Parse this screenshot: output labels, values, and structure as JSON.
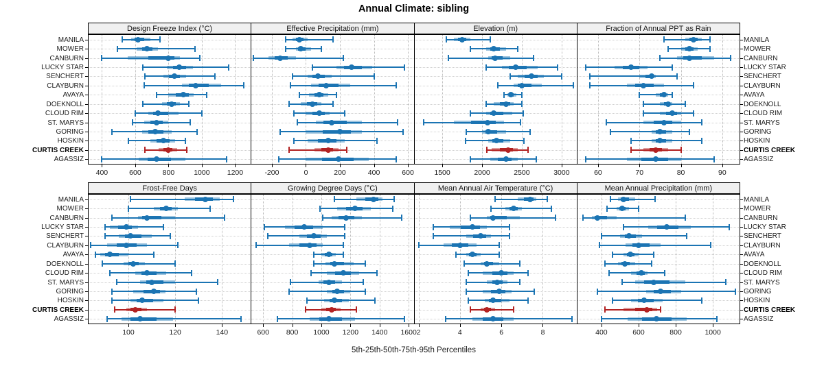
{
  "title": "Annual Climate: sibling",
  "footer": "5th-25th-50th-75th-95th Percentiles",
  "sites": [
    "MANILA",
    "MOWER",
    "CANBURN",
    "LUCKY STAR",
    "SENCHERT",
    "CLAYBURN",
    "AVAYA",
    "DOEKNOLL",
    "CLOUD RIM",
    "ST. MARYS",
    "GORING",
    "HOSKIN",
    "CURTIS CREEK",
    "AGASSIZ"
  ],
  "highlight_site": "CURTIS CREEK",
  "colors": {
    "series": "#1b74b3",
    "series_band": "rgba(27,116,179,0.42)",
    "highlight": "#b22222",
    "highlight_band": "rgba(178,34,34,0.45)",
    "grid": "#b8b8b8",
    "header_bg": "#f0f0f0",
    "border": "#000000"
  },
  "chart_data": {
    "type": "dotplot",
    "subtype": "percentile-intervals",
    "percentiles": [
      "5th",
      "25th",
      "50th",
      "75th",
      "95th"
    ],
    "legend_position": "none",
    "grid": "dotted",
    "layout": {
      "rows": 2,
      "cols": 4
    },
    "panels": [
      {
        "title": "Design Freeze Index (°C)",
        "row": 0,
        "col": 0,
        "xlim": [
          320,
          1290
        ],
        "ticks": [
          400,
          600,
          800,
          1000,
          1200
        ],
        "values": [
          [
            520,
            575,
            615,
            690,
            750
          ],
          [
            495,
            610,
            670,
            735,
            960
          ],
          [
            400,
            555,
            800,
            870,
            990
          ],
          [
            645,
            790,
            865,
            945,
            1160
          ],
          [
            660,
            770,
            835,
            905,
            1080
          ],
          [
            655,
            880,
            965,
            1115,
            1250
          ],
          [
            730,
            800,
            890,
            950,
            1030
          ],
          [
            645,
            760,
            820,
            870,
            920
          ],
          [
            600,
            680,
            735,
            860,
            1000
          ],
          [
            585,
            655,
            730,
            800,
            930
          ],
          [
            460,
            640,
            720,
            820,
            970
          ],
          [
            560,
            690,
            770,
            840,
            900
          ],
          [
            660,
            740,
            800,
            850,
            910
          ],
          [
            400,
            620,
            730,
            900,
            1150
          ]
        ]
      },
      {
        "title": "Effective Precipitation (mm)",
        "row": 0,
        "col": 1,
        "xlim": [
          -320,
          630
        ],
        "ticks": [
          -200,
          0,
          200,
          400,
          600
        ],
        "values": [
          [
            -120,
            -80,
            -40,
            10,
            160
          ],
          [
            -120,
            -60,
            -30,
            30,
            90
          ],
          [
            -310,
            -220,
            -150,
            -60,
            220
          ],
          [
            40,
            180,
            270,
            390,
            580
          ],
          [
            -80,
            10,
            70,
            150,
            400
          ],
          [
            -90,
            30,
            120,
            260,
            530
          ],
          [
            -40,
            20,
            80,
            130,
            180
          ],
          [
            -100,
            -30,
            40,
            90,
            160
          ],
          [
            -70,
            0,
            80,
            140,
            230
          ],
          [
            -50,
            60,
            150,
            330,
            540
          ],
          [
            -150,
            0,
            200,
            330,
            570
          ],
          [
            -70,
            10,
            130,
            230,
            420
          ],
          [
            -100,
            50,
            130,
            190,
            240
          ],
          [
            -160,
            0,
            190,
            370,
            530
          ]
        ]
      },
      {
        "title": "Elevation (m)",
        "row": 0,
        "col": 2,
        "xlim": [
          1150,
          3180
        ],
        "ticks": [
          1500,
          2000,
          2500,
          3000
        ],
        "values": [
          [
            1550,
            1650,
            1750,
            1850,
            2100
          ],
          [
            1850,
            2050,
            2150,
            2300,
            2450
          ],
          [
            1580,
            2080,
            2160,
            2350,
            2650
          ],
          [
            2050,
            2250,
            2420,
            2700,
            2950
          ],
          [
            2350,
            2450,
            2620,
            2780,
            3000
          ],
          [
            2200,
            2400,
            2500,
            2750,
            3150
          ],
          [
            2280,
            2320,
            2360,
            2430,
            2500
          ],
          [
            2050,
            2150,
            2300,
            2400,
            2500
          ],
          [
            1850,
            2050,
            2150,
            2380,
            2520
          ],
          [
            1270,
            1650,
            2070,
            2280,
            2480
          ],
          [
            1800,
            2000,
            2080,
            2300,
            2600
          ],
          [
            1790,
            2080,
            2180,
            2350,
            2530
          ],
          [
            2060,
            2120,
            2330,
            2450,
            2580
          ],
          [
            1850,
            2100,
            2300,
            2450,
            2680
          ]
        ]
      },
      {
        "title": "Fraction of Annual PPT as Rain",
        "row": 0,
        "col": 3,
        "xlim": [
          55,
          94
        ],
        "ticks": [
          60,
          70,
          80,
          90
        ],
        "values": [
          [
            76,
            81,
            83,
            85,
            87
          ],
          [
            77,
            80,
            82,
            84,
            87
          ],
          [
            75,
            79,
            82,
            88,
            92
          ],
          [
            57,
            64,
            68,
            72,
            78
          ],
          [
            58,
            70,
            73,
            74,
            79
          ],
          [
            58,
            67,
            71,
            76,
            83
          ],
          [
            70,
            74,
            76,
            77,
            78
          ],
          [
            71,
            75,
            77,
            78,
            81
          ],
          [
            71,
            75,
            78,
            80,
            83
          ],
          [
            62,
            71,
            76,
            80,
            85
          ],
          [
            63,
            73,
            75,
            78,
            82
          ],
          [
            68,
            73,
            75,
            78,
            85
          ],
          [
            68,
            71,
            74,
            77,
            80
          ],
          [
            57,
            67,
            74,
            80,
            88
          ]
        ]
      },
      {
        "title": "Frost-Free Days",
        "row": 1,
        "col": 0,
        "xlim": [
          83,
          152
        ],
        "ticks": [
          100,
          120,
          140
        ],
        "values": [
          [
            101,
            124,
            133,
            139,
            145
          ],
          [
            100,
            111,
            116,
            121,
            135
          ],
          [
            93,
            104,
            108,
            120,
            141
          ],
          [
            90,
            92,
            99,
            104,
            115
          ],
          [
            90,
            96,
            101,
            110,
            118
          ],
          [
            84,
            91,
            99,
            108,
            121
          ],
          [
            86,
            88,
            92,
            100,
            111
          ],
          [
            89,
            98,
            102,
            107,
            120
          ],
          [
            92,
            103,
            108,
            116,
            127
          ],
          [
            95,
            105,
            110,
            120,
            138
          ],
          [
            93,
            102,
            111,
            116,
            129
          ],
          [
            93,
            101,
            106,
            115,
            130
          ],
          [
            94,
            99,
            103,
            108,
            120
          ],
          [
            91,
            97,
            105,
            119,
            148
          ]
        ]
      },
      {
        "title": "Growing Degree Days (°C)",
        "row": 1,
        "col": 1,
        "xlim": [
          520,
          1630
        ],
        "ticks": [
          600,
          800,
          1000,
          1200,
          1400,
          1600
        ],
        "values": [
          [
            1090,
            1240,
            1360,
            1420,
            1500
          ],
          [
            990,
            1110,
            1230,
            1340,
            1490
          ],
          [
            1010,
            1070,
            1170,
            1280,
            1550
          ],
          [
            610,
            750,
            880,
            1010,
            1160
          ],
          [
            630,
            850,
            950,
            1040,
            1160
          ],
          [
            550,
            780,
            920,
            1010,
            1150
          ],
          [
            950,
            1000,
            1050,
            1100,
            1150
          ],
          [
            950,
            1030,
            1090,
            1220,
            1300
          ],
          [
            930,
            1040,
            1150,
            1260,
            1380
          ],
          [
            790,
            980,
            1050,
            1140,
            1290
          ],
          [
            780,
            1040,
            1110,
            1200,
            1300
          ],
          [
            900,
            1020,
            1090,
            1190,
            1370
          ],
          [
            890,
            1000,
            1070,
            1130,
            1240
          ],
          [
            700,
            920,
            1050,
            1230,
            1570
          ]
        ]
      },
      {
        "title": "Mean Annual Air Temperature (°C)",
        "row": 1,
        "col": 2,
        "xlim": [
          1.8,
          9.6
        ],
        "ticks": [
          2,
          4,
          6,
          8
        ],
        "values": [
          [
            5.7,
            6.8,
            7.4,
            7.7,
            8.2
          ],
          [
            5.5,
            6.2,
            6.6,
            7.0,
            8.4
          ],
          [
            4.5,
            5.3,
            5.6,
            6.9,
            8.6
          ],
          [
            2.7,
            3.5,
            4.6,
            5.3,
            6.4
          ],
          [
            2.7,
            4.3,
            5.0,
            5.5,
            6.4
          ],
          [
            2.0,
            3.2,
            4.0,
            4.8,
            5.9
          ],
          [
            3.8,
            4.3,
            4.6,
            5.0,
            5.9
          ],
          [
            4.2,
            5.0,
            5.3,
            5.9,
            6.9
          ],
          [
            4.4,
            5.1,
            6.0,
            6.6,
            7.3
          ],
          [
            4.3,
            5.3,
            5.8,
            6.3,
            6.9
          ],
          [
            4.3,
            5.1,
            5.9,
            6.5,
            7.6
          ],
          [
            4.4,
            5.2,
            5.6,
            6.4,
            7.3
          ],
          [
            4.5,
            5.0,
            5.3,
            5.7,
            6.6
          ],
          [
            3.3,
            4.6,
            5.6,
            6.6,
            9.4
          ]
        ]
      },
      {
        "title": "Mean Annual Precipitation (mm)",
        "row": 1,
        "col": 3,
        "xlim": [
          270,
          1140
        ],
        "ticks": [
          400,
          600,
          800,
          1000
        ],
        "values": [
          [
            450,
            490,
            520,
            580,
            690
          ],
          [
            430,
            480,
            510,
            550,
            600
          ],
          [
            300,
            350,
            380,
            480,
            850
          ],
          [
            520,
            650,
            750,
            880,
            1090
          ],
          [
            400,
            500,
            550,
            620,
            860
          ],
          [
            390,
            530,
            600,
            720,
            990
          ],
          [
            460,
            520,
            555,
            600,
            680
          ],
          [
            420,
            490,
            525,
            580,
            670
          ],
          [
            440,
            560,
            615,
            650,
            740
          ],
          [
            510,
            580,
            680,
            850,
            1070
          ],
          [
            380,
            640,
            720,
            830,
            1120
          ],
          [
            460,
            560,
            630,
            730,
            940
          ],
          [
            420,
            520,
            645,
            700,
            720
          ],
          [
            400,
            540,
            695,
            860,
            1020
          ]
        ]
      }
    ]
  }
}
